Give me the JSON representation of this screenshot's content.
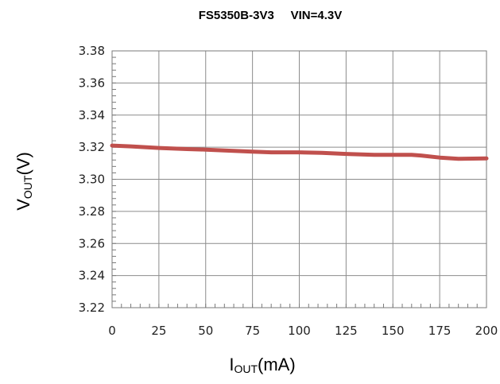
{
  "chart_data": {
    "type": "line",
    "title": "FS5350B-3V3     VIN=4.3V",
    "xlabel_main": "I",
    "xlabel_sub": "OUT",
    "xlabel_unit": "(mA)",
    "ylabel_main": "V",
    "ylabel_sub": "OUT",
    "ylabel_unit": "(V)",
    "xlim": [
      0,
      200
    ],
    "ylim": [
      3.22,
      3.38
    ],
    "x_ticks": [
      "0",
      "25",
      "50",
      "75",
      "100",
      "125",
      "150",
      "175",
      "200"
    ],
    "y_ticks": [
      "3.38",
      "3.36",
      "3.34",
      "3.32",
      "3.30",
      "3.28",
      "3.26",
      "3.24",
      "3.22"
    ],
    "grid": true,
    "series": [
      {
        "color": "#c0504d",
        "x": [
          0,
          10,
          25,
          40,
          50,
          60,
          75,
          85,
          100,
          112,
          125,
          140,
          150,
          160,
          165,
          175,
          185,
          200
        ],
        "y": [
          3.321,
          3.3205,
          3.3195,
          3.3188,
          3.3185,
          3.318,
          3.3172,
          3.3168,
          3.3168,
          3.3165,
          3.3158,
          3.3152,
          3.3152,
          3.3152,
          3.3148,
          3.3135,
          3.3128,
          3.313
        ]
      }
    ]
  }
}
